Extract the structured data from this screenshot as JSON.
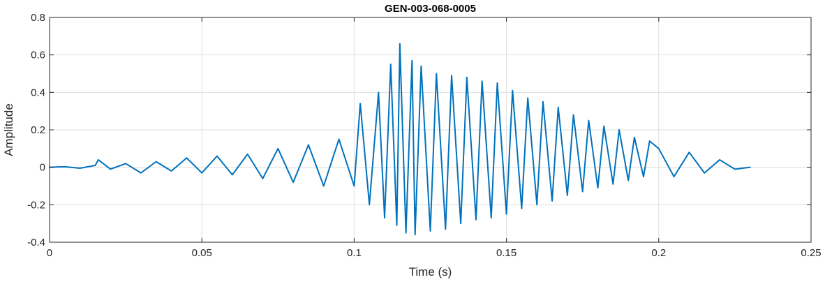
{
  "chart_data": {
    "type": "line",
    "title": "GEN-003-068-0005",
    "xlabel": "Time (s)",
    "ylabel": "Amplitude",
    "xlim": [
      0,
      0.25
    ],
    "ylim": [
      -0.4,
      0.8
    ],
    "xticks": [
      0,
      0.05,
      0.1,
      0.15,
      0.2,
      0.25
    ],
    "xtick_labels": [
      "0",
      "0.05",
      "0.1",
      "0.15",
      "0.2",
      "0.25"
    ],
    "yticks": [
      -0.4,
      -0.2,
      0,
      0.2,
      0.4,
      0.6,
      0.8
    ],
    "ytick_labels": [
      "-0.4",
      "-0.2",
      "0",
      "0.2",
      "0.4",
      "0.6",
      "0.8"
    ],
    "grid": true,
    "line_color": "#0072bd",
    "series": [
      {
        "x": [
          0,
          0.005,
          0.01,
          0.015,
          0.016,
          0.02,
          0.025,
          0.03,
          0.035,
          0.04,
          0.045,
          0.05,
          0.055,
          0.06,
          0.065,
          0.07,
          0.075,
          0.08,
          0.085,
          0.09,
          0.095,
          0.1,
          0.102,
          0.105,
          0.108,
          0.11,
          0.112,
          0.114,
          0.115,
          0.117,
          0.119,
          0.12,
          0.122,
          0.125,
          0.127,
          0.13,
          0.132,
          0.135,
          0.137,
          0.14,
          0.142,
          0.145,
          0.147,
          0.15,
          0.152,
          0.155,
          0.157,
          0.16,
          0.162,
          0.165,
          0.167,
          0.17,
          0.172,
          0.175,
          0.177,
          0.18,
          0.182,
          0.185,
          0.187,
          0.19,
          0.192,
          0.195,
          0.197,
          0.2,
          0.205,
          0.21,
          0.215,
          0.22,
          0.225,
          0.23
        ],
        "y": [
          0.0,
          0.003,
          -0.005,
          0.01,
          0.04,
          -0.01,
          0.02,
          -0.03,
          0.03,
          -0.02,
          0.05,
          -0.03,
          0.06,
          -0.04,
          0.07,
          -0.06,
          0.1,
          -0.08,
          0.12,
          -0.1,
          0.15,
          -0.1,
          0.34,
          -0.2,
          0.4,
          -0.27,
          0.55,
          -0.31,
          0.66,
          -0.35,
          0.57,
          -0.36,
          0.54,
          -0.34,
          0.5,
          -0.33,
          0.49,
          -0.3,
          0.48,
          -0.28,
          0.46,
          -0.27,
          0.45,
          -0.25,
          0.41,
          -0.22,
          0.37,
          -0.2,
          0.35,
          -0.18,
          0.32,
          -0.15,
          0.28,
          -0.13,
          0.25,
          -0.11,
          0.22,
          -0.09,
          0.2,
          -0.07,
          0.16,
          -0.05,
          0.14,
          0.1,
          -0.05,
          0.08,
          -0.03,
          0.04,
          -0.01,
          0.0
        ]
      }
    ]
  }
}
